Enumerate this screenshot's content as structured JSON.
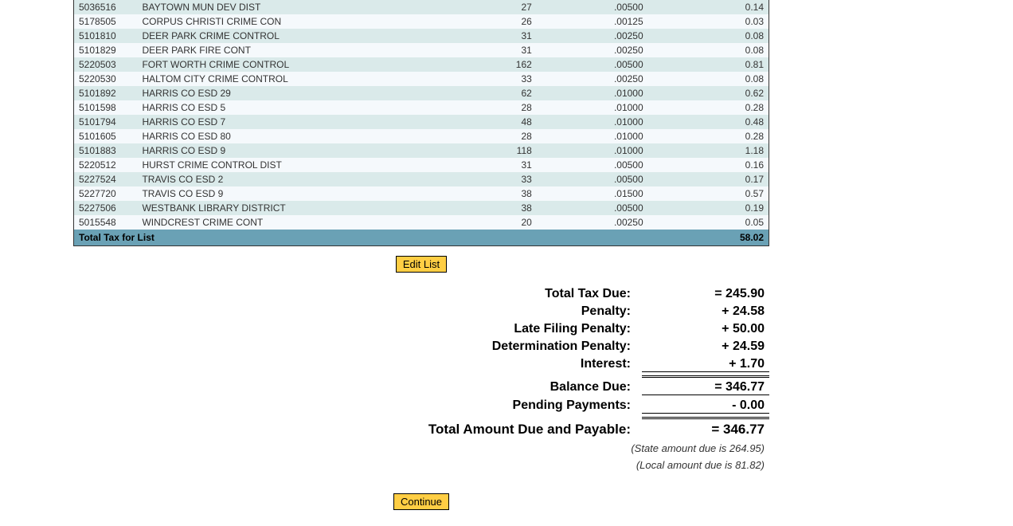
{
  "table": {
    "row_colors": {
      "light": "#f5f9fc",
      "dark": "#daeaea"
    },
    "total_row_color": "#6aa1b5",
    "columns": [
      "code",
      "name",
      "qty",
      "rate",
      "amount"
    ],
    "rows": [
      {
        "code": "5036516",
        "name": "BAYTOWN MUN DEV DIST",
        "qty": "27",
        "rate": ".00500",
        "amount": "0.14",
        "shade": "dark"
      },
      {
        "code": "5178505",
        "name": "CORPUS CHRISTI CRIME CON",
        "qty": "26",
        "rate": ".00125",
        "amount": "0.03",
        "shade": "light"
      },
      {
        "code": "5101810",
        "name": "DEER PARK CRIME CONTROL",
        "qty": "31",
        "rate": ".00250",
        "amount": "0.08",
        "shade": "dark"
      },
      {
        "code": "5101829",
        "name": "DEER PARK FIRE CONT",
        "qty": "31",
        "rate": ".00250",
        "amount": "0.08",
        "shade": "light"
      },
      {
        "code": "5220503",
        "name": "FORT WORTH CRIME CONTROL",
        "qty": "162",
        "rate": ".00500",
        "amount": "0.81",
        "shade": "dark"
      },
      {
        "code": "5220530",
        "name": "HALTOM CITY CRIME CONTROL",
        "qty": "33",
        "rate": ".00250",
        "amount": "0.08",
        "shade": "light"
      },
      {
        "code": "5101892",
        "name": "HARRIS CO ESD 29",
        "qty": "62",
        "rate": ".01000",
        "amount": "0.62",
        "shade": "dark"
      },
      {
        "code": "5101598",
        "name": "HARRIS CO ESD 5",
        "qty": "28",
        "rate": ".01000",
        "amount": "0.28",
        "shade": "light"
      },
      {
        "code": "5101794",
        "name": "HARRIS CO ESD 7",
        "qty": "48",
        "rate": ".01000",
        "amount": "0.48",
        "shade": "dark"
      },
      {
        "code": "5101605",
        "name": "HARRIS CO ESD 80",
        "qty": "28",
        "rate": ".01000",
        "amount": "0.28",
        "shade": "light"
      },
      {
        "code": "5101883",
        "name": "HARRIS CO ESD 9",
        "qty": "118",
        "rate": ".01000",
        "amount": "1.18",
        "shade": "dark"
      },
      {
        "code": "5220512",
        "name": "HURST CRIME CONTROL DIST",
        "qty": "31",
        "rate": ".00500",
        "amount": "0.16",
        "shade": "light"
      },
      {
        "code": "5227524",
        "name": "TRAVIS CO ESD 2",
        "qty": "33",
        "rate": ".00500",
        "amount": "0.17",
        "shade": "dark"
      },
      {
        "code": "5227720",
        "name": "TRAVIS CO ESD 9",
        "qty": "38",
        "rate": ".01500",
        "amount": "0.57",
        "shade": "light"
      },
      {
        "code": "5227506",
        "name": "WESTBANK LIBRARY DISTRICT",
        "qty": "38",
        "rate": ".00500",
        "amount": "0.19",
        "shade": "dark"
      },
      {
        "code": "5015548",
        "name": "WINDCREST CRIME CONT",
        "qty": "20",
        "rate": ".00250",
        "amount": "0.05",
        "shade": "light"
      }
    ],
    "total_label": "Total Tax for List",
    "total_amount": "58.02"
  },
  "buttons": {
    "edit": "Edit List",
    "continue": "Continue",
    "button_bg": "#ffce44"
  },
  "summary": {
    "total_tax_due": {
      "label": "Total Tax Due:",
      "value": "= 245.90"
    },
    "penalty": {
      "label": "Penalty:",
      "value": "+ 24.58"
    },
    "late_filing": {
      "label": "Late Filing Penalty:",
      "value": "+ 50.00"
    },
    "determination": {
      "label": "Determination Penalty:",
      "value": "+ 24.59"
    },
    "interest": {
      "label": "Interest:",
      "value": "+ 1.70"
    },
    "balance_due": {
      "label": "Balance Due:",
      "value": "= 346.77"
    },
    "pending": {
      "label": "Pending Payments:",
      "value": "- 0.00"
    },
    "total_payable": {
      "label": "Total Amount Due and Payable:",
      "value": "= 346.77"
    }
  },
  "notes": {
    "state": "(State amount due is 264.95)",
    "local": "(Local amount due is 81.82)"
  }
}
